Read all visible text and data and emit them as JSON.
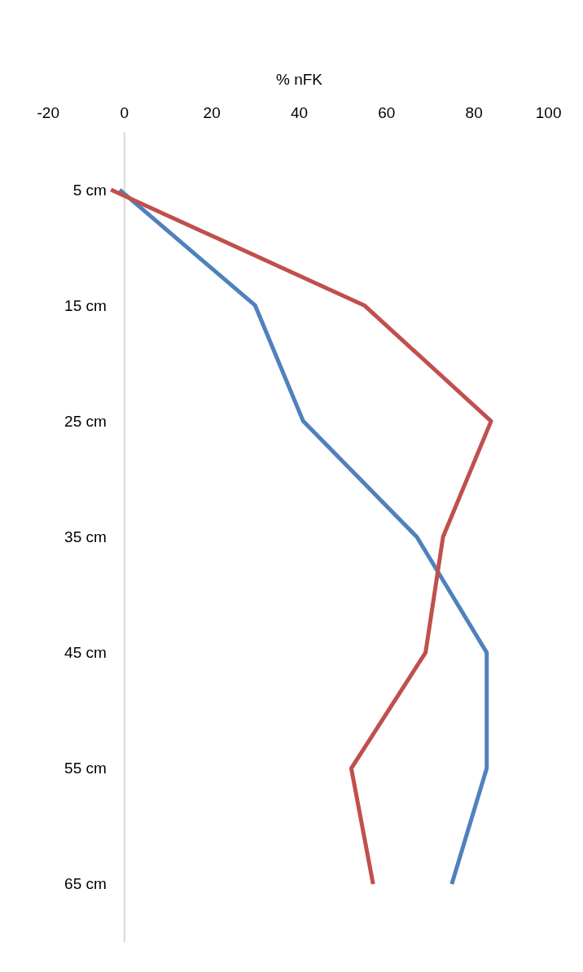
{
  "chart_data": {
    "type": "line",
    "orientation": "horizontal",
    "xlabel": "% nFK",
    "categories": [
      "5 cm",
      "15 cm",
      "25 cm",
      "35 cm",
      "45 cm",
      "55 cm",
      "65 cm"
    ],
    "series": [
      {
        "color": "#4f81bd",
        "values": [
          -1,
          30,
          41,
          67,
          83,
          83,
          75
        ]
      },
      {
        "color": "#c0504d",
        "values": [
          -3,
          55,
          84,
          73,
          69,
          52,
          57
        ]
      }
    ],
    "xlim": [
      -20,
      100
    ],
    "xticks": [
      -20,
      0,
      20,
      40,
      60,
      80,
      100
    ],
    "grid": false,
    "legend": false,
    "marker": "none",
    "line_style": "solid"
  }
}
